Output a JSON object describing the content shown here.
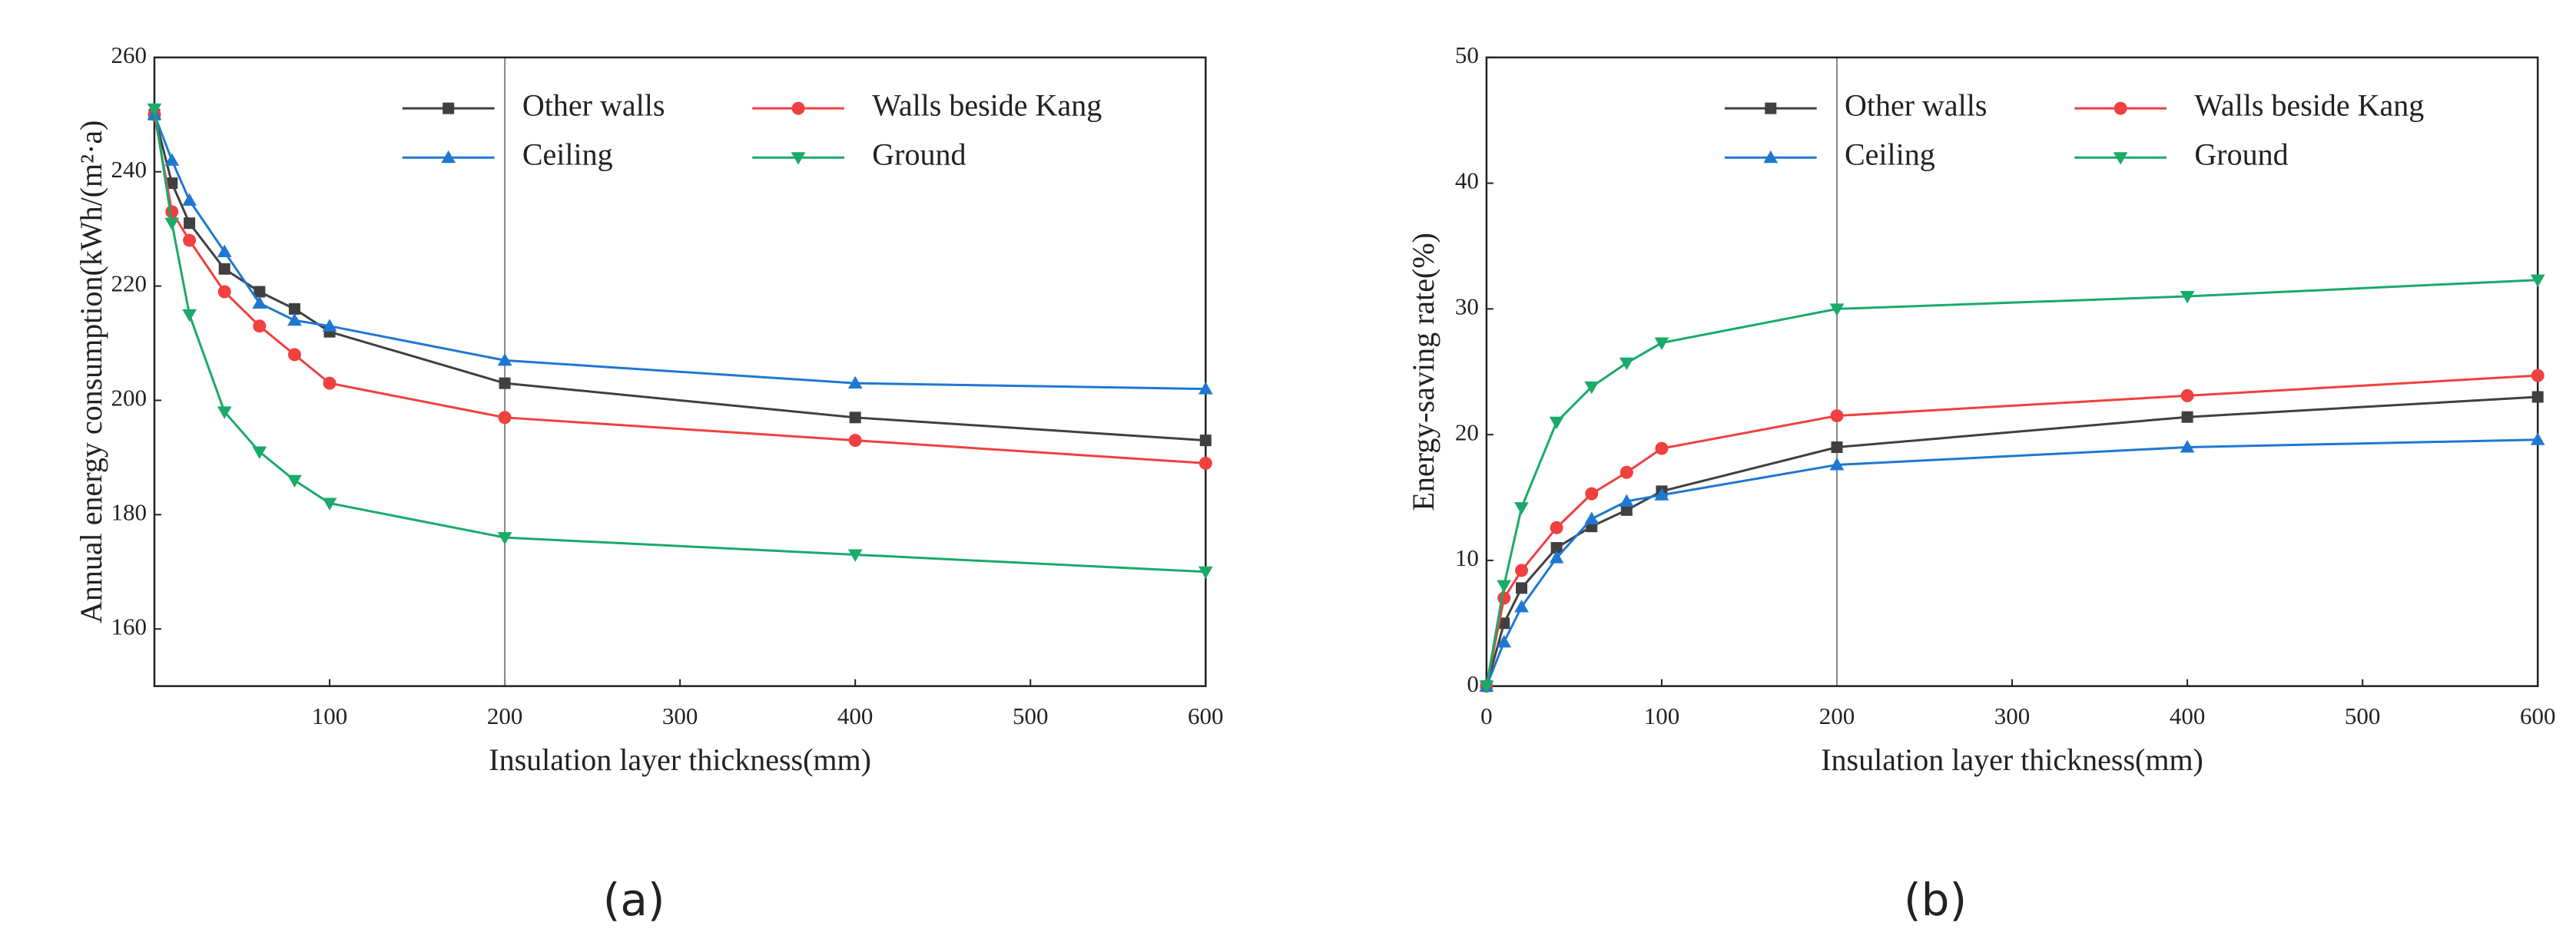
{
  "chart_data": [
    {
      "type": "line",
      "caption": "(a)",
      "x_label": "Insulation layer thickness(mm)",
      "y_label": "Annual energy consumption(kWh/(m²·a)",
      "x": [
        0,
        10,
        20,
        40,
        60,
        80,
        100,
        200,
        400,
        600
      ],
      "xlim": [
        0,
        600
      ],
      "xticks": [
        100,
        200,
        300,
        400,
        500,
        600
      ],
      "ylim": [
        150,
        260
      ],
      "yticks": [
        160,
        180,
        200,
        220,
        240,
        260
      ],
      "vline": 200,
      "series": [
        {
          "name": "Other walls",
          "color": "#404040",
          "marker": "square",
          "values": [
            250,
            238,
            231,
            223,
            219,
            216,
            212,
            203,
            197,
            193
          ]
        },
        {
          "name": "Walls beside Kang",
          "color": "#f04040",
          "marker": "circle",
          "values": [
            250,
            233,
            228,
            219,
            213,
            208,
            203,
            197,
            193,
            189
          ]
        },
        {
          "name": "Ceiling",
          "color": "#1f78d0",
          "marker": "triangle-up",
          "values": [
            250,
            242,
            235,
            226,
            217,
            214,
            213,
            207,
            203,
            202
          ]
        },
        {
          "name": "Ground",
          "color": "#1aaa6a",
          "marker": "triangle-down",
          "values": [
            251,
            231,
            215,
            198,
            191,
            186,
            182,
            176,
            173,
            170
          ]
        }
      ]
    },
    {
      "type": "line",
      "caption": "(b)",
      "x_label": "Insulation layer thickness(mm)",
      "y_label": "Energy-saving rate(%)",
      "x": [
        0,
        10,
        20,
        40,
        60,
        80,
        100,
        200,
        400,
        600
      ],
      "xlim": [
        0,
        600
      ],
      "xticks": [
        0,
        100,
        200,
        300,
        400,
        500,
        600
      ],
      "ylim": [
        0,
        50
      ],
      "yticks": [
        0,
        10,
        20,
        30,
        40,
        50
      ],
      "vline": 200,
      "series": [
        {
          "name": "Other walls",
          "color": "#404040",
          "marker": "square",
          "values": [
            0,
            5,
            7.8,
            11,
            12.7,
            14,
            15.5,
            19,
            21.4,
            23
          ]
        },
        {
          "name": "Walls beside Kang",
          "color": "#f04040",
          "marker": "circle",
          "values": [
            0,
            7,
            9.2,
            12.6,
            15.3,
            17,
            18.9,
            21.5,
            23.1,
            24.7
          ]
        },
        {
          "name": "Ceiling",
          "color": "#1f78d0",
          "marker": "triangle-up",
          "values": [
            0,
            3.5,
            6.3,
            10.2,
            13.3,
            14.7,
            15.2,
            17.6,
            19,
            19.6
          ]
        },
        {
          "name": "Ground",
          "color": "#1aaa6a",
          "marker": "triangle-down",
          "values": [
            0,
            8,
            14.2,
            21,
            23.8,
            25.7,
            27.3,
            30,
            31,
            32.3
          ]
        }
      ]
    }
  ]
}
